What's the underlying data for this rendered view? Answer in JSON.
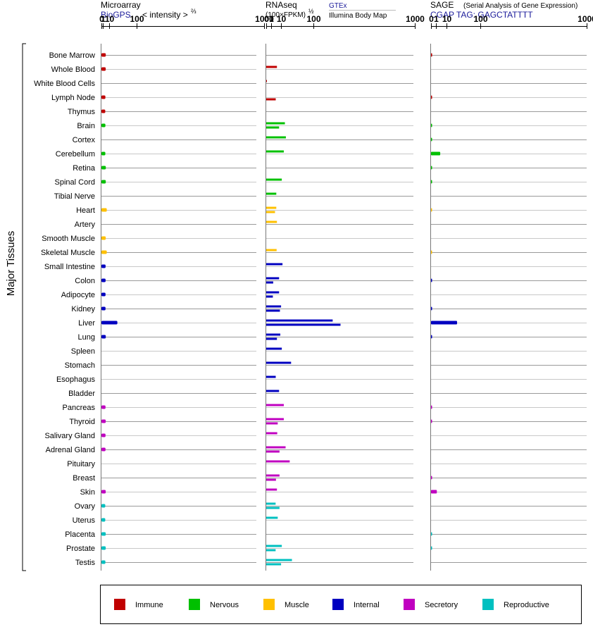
{
  "header": {
    "microarray_title": "Microarray",
    "microarray_source": "BioGPS",
    "microarray_scale": "< intensity >",
    "microarray_scale_exp": "⅔",
    "rnaseq_title": "RNAseq",
    "rnaseq_scale": "(100×FPKM)",
    "rnaseq_scale_exp": "½",
    "rnaseq_source_a": "GTEx",
    "rnaseq_source_b": "Illumina Body Map",
    "sage_title": "SAGE",
    "sage_subtitle": "(Serial Analysis of Gene Expression)",
    "sage_tag": "CGAP TAG: GAGCTATTTT",
    "y_axis_label": "Major Tissues"
  },
  "axis_ticks": [
    "0",
    "1",
    "10",
    "100",
    "1000"
  ],
  "colors": {
    "Immune": "#c00000",
    "Nervous": "#00c000",
    "Muscle": "#ffc000",
    "Internal": "#0000c0",
    "Secretory": "#c000c0",
    "Reproductive": "#00c0c0"
  },
  "legend": [
    {
      "label": "Immune",
      "color": "#c00000"
    },
    {
      "label": "Nervous",
      "color": "#00c000"
    },
    {
      "label": "Muscle",
      "color": "#ffc000"
    },
    {
      "label": "Internal",
      "color": "#0000c0"
    },
    {
      "label": "Secretory",
      "color": "#c000c0"
    },
    {
      "label": "Reproductive",
      "color": "#00c0c0"
    }
  ],
  "chart_data": {
    "type": "bar",
    "orientation": "horizontal",
    "x_scale": "power",
    "xlim": [
      0,
      1000
    ],
    "panels": [
      "Microarray",
      "RNAseq",
      "SAGE"
    ],
    "tissues": [
      {
        "name": "Bone Marrow",
        "group": "Immune",
        "microarray": 4.7,
        "rnaseq": [],
        "sage": 0.05
      },
      {
        "name": "Whole Blood",
        "group": "Immune",
        "microarray": 4.6,
        "rnaseq": [
          5.2
        ],
        "sage": 0
      },
      {
        "name": "White Blood Cells",
        "group": "Immune",
        "microarray": 0,
        "rnaseq": [
          0.02
        ],
        "sage": 0
      },
      {
        "name": "Lymph Node",
        "group": "Immune",
        "microarray": 4.1,
        "rnaseq": [
          0,
          4.1
        ],
        "sage": 0.04
      },
      {
        "name": "Thymus",
        "group": "Immune",
        "microarray": 3.9,
        "rnaseq": [],
        "sage": 0
      },
      {
        "name": "Brain",
        "group": "Nervous",
        "microarray": 4.1,
        "rnaseq": [
          15.8,
          7.5
        ],
        "sage": 0.04
      },
      {
        "name": "Cortex",
        "group": "Nervous",
        "microarray": 0,
        "rnaseq": [
          17.5
        ],
        "sage": 0.03
      },
      {
        "name": "Cerebellum",
        "group": "Nervous",
        "microarray": 4.0,
        "rnaseq": [
          14.0
        ],
        "sage": 3.5
      },
      {
        "name": "Retina",
        "group": "Nervous",
        "microarray": 4.8,
        "rnaseq": [],
        "sage": 0.03
      },
      {
        "name": "Spinal Cord",
        "group": "Nervous",
        "microarray": 4.7,
        "rnaseq": [
          11.0
        ],
        "sage": 0.03
      },
      {
        "name": "Tibial Nerve",
        "group": "Nervous",
        "microarray": 0,
        "rnaseq": [
          4.6
        ],
        "sage": 0
      },
      {
        "name": "Heart",
        "group": "Muscle",
        "microarray": 6.4,
        "rnaseq": [
          4.6,
          3.5
        ],
        "sage": 0.01
      },
      {
        "name": "Artery",
        "group": "Muscle",
        "microarray": 0,
        "rnaseq": [
          5.2
        ],
        "sage": 0
      },
      {
        "name": "Smooth Muscle",
        "group": "Muscle",
        "microarray": 4.6,
        "rnaseq": [],
        "sage": 0
      },
      {
        "name": "Skeletal Muscle",
        "group": "Muscle",
        "microarray": 6.4,
        "rnaseq": [
          4.9
        ],
        "sage": 0.01
      },
      {
        "name": "Small Intestine",
        "group": "Internal",
        "microarray": 4.4,
        "rnaseq": [
          12.0
        ],
        "sage": 0
      },
      {
        "name": "Colon",
        "group": "Internal",
        "microarray": 4.4,
        "rnaseq": [
          7.5,
          2.2
        ],
        "sage": 0.03
      },
      {
        "name": "Adipocyte",
        "group": "Internal",
        "microarray": 4.3,
        "rnaseq": [
          7.5,
          2.0
        ],
        "sage": 0
      },
      {
        "name": "Kidney",
        "group": "Internal",
        "microarray": 4.3,
        "rnaseq": [
          10.0,
          8.5
        ],
        "sage": 0.03
      },
      {
        "name": "Liver",
        "group": "Internal",
        "microarray": 33.0,
        "rnaseq": [
          200.0,
          250.0
        ],
        "sage": 28.0
      },
      {
        "name": "Lung",
        "group": "Internal",
        "microarray": 4.7,
        "rnaseq": [
          9.0,
          5.2
        ],
        "sage": 0.03
      },
      {
        "name": "Spleen",
        "group": "Internal",
        "microarray": 0,
        "rnaseq": [
          11.0
        ],
        "sage": 0
      },
      {
        "name": "Stomach",
        "group": "Internal",
        "microarray": 0,
        "rnaseq": [
          28.0
        ],
        "sage": 0
      },
      {
        "name": "Esophagus",
        "group": "Internal",
        "microarray": 0,
        "rnaseq": [
          4.1
        ],
        "sage": 0
      },
      {
        "name": "Bladder",
        "group": "Internal",
        "microarray": 0,
        "rnaseq": [
          7.5
        ],
        "sage": 0
      },
      {
        "name": "Pancreas",
        "group": "Secretory",
        "microarray": 4.3,
        "rnaseq": [
          14.0
        ],
        "sage": 0.04
      },
      {
        "name": "Thyroid",
        "group": "Secretory",
        "microarray": 4.6,
        "rnaseq": [
          14.0,
          6.0
        ],
        "sage": 0.04
      },
      {
        "name": "Salivary Gland",
        "group": "Secretory",
        "microarray": 4.3,
        "rnaseq": [
          5.5
        ],
        "sage": 0
      },
      {
        "name": "Adrenal Gland",
        "group": "Secretory",
        "microarray": 4.3,
        "rnaseq": [
          17.0,
          8.0
        ],
        "sage": 0
      },
      {
        "name": "Pituitary",
        "group": "Secretory",
        "microarray": 0,
        "rnaseq": [
          25.0
        ],
        "sage": 0
      },
      {
        "name": "Breast",
        "group": "Secretory",
        "microarray": 0,
        "rnaseq": [
          8.0,
          4.3
        ],
        "sage": 0.03
      },
      {
        "name": "Skin",
        "group": "Secretory",
        "microarray": 4.6,
        "rnaseq": [
          5.2
        ],
        "sage": 1.4
      },
      {
        "name": "Ovary",
        "group": "Reproductive",
        "microarray": 3.9,
        "rnaseq": [
          4.0,
          8.0
        ],
        "sage": 0
      },
      {
        "name": "Uterus",
        "group": "Reproductive",
        "microarray": 3.9,
        "rnaseq": [
          6.0
        ],
        "sage": 0
      },
      {
        "name": "Placenta",
        "group": "Reproductive",
        "microarray": 4.6,
        "rnaseq": [],
        "sage": 0.03
      },
      {
        "name": "Prostate",
        "group": "Reproductive",
        "microarray": 4.6,
        "rnaseq": [
          11.0,
          4.0
        ],
        "sage": 0.03
      },
      {
        "name": "Testis",
        "group": "Reproductive",
        "microarray": 4.1,
        "rnaseq": [
          30.0,
          10.0
        ],
        "sage": 0
      }
    ]
  }
}
